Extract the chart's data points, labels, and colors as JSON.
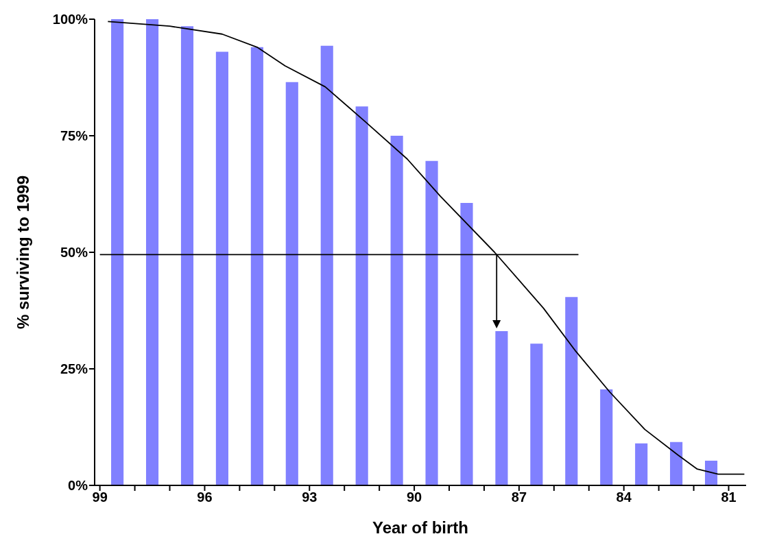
{
  "chart_data": {
    "type": "bar",
    "xlabel": "Year of birth",
    "ylabel": "% surviving to 1999",
    "xlim": [
      99.15,
      80.5
    ],
    "xticks": [
      {
        "value": 99,
        "label": "99"
      },
      {
        "value": 98,
        "label": null
      },
      {
        "value": 97,
        "label": null
      },
      {
        "value": 96,
        "label": "96"
      },
      {
        "value": 95,
        "label": null
      },
      {
        "value": 94,
        "label": null
      },
      {
        "value": 93,
        "label": "93"
      },
      {
        "value": 92,
        "label": null
      },
      {
        "value": 91,
        "label": null
      },
      {
        "value": 90,
        "label": "90"
      },
      {
        "value": 89,
        "label": null
      },
      {
        "value": 88,
        "label": null
      },
      {
        "value": 87,
        "label": "87"
      },
      {
        "value": 86,
        "label": null
      },
      {
        "value": 85,
        "label": null
      },
      {
        "value": 84,
        "label": "84"
      },
      {
        "value": 83,
        "label": null
      },
      {
        "value": 82,
        "label": null
      },
      {
        "value": 81,
        "label": "81"
      }
    ],
    "ylim": [
      0,
      100
    ],
    "yticks": [
      {
        "value": 0,
        "label": "0%"
      },
      {
        "value": 25,
        "label": "25%"
      },
      {
        "value": 50,
        "label": "50%"
      },
      {
        "value": 75,
        "label": "75%"
      },
      {
        "value": 100,
        "label": "100%"
      }
    ],
    "grid": false,
    "series": [
      {
        "color": "#8080ff",
        "x": [
          98.5,
          97.5,
          96.5,
          95.5,
          94.5,
          93.5,
          92.5,
          91.5,
          90.5,
          89.5,
          88.5,
          87.5,
          86.5,
          85.5,
          84.5,
          83.5,
          82.5,
          81.5
        ],
        "values": [
          100,
          100,
          98.5,
          93,
          94,
          86.5,
          94.3,
          81.3,
          75,
          69.6,
          60.6,
          33.1,
          30.4,
          40.4,
          20.6,
          9,
          9.3,
          5.3
        ]
      },
      {
        "type": "line",
        "color": "#000000",
        "marker": "none",
        "x": [
          98.77,
          97,
          95.5,
          94.5,
          93.7,
          92.55,
          91.4,
          90.2,
          89.25,
          87.7,
          86.3,
          85.4,
          84.4,
          83.4,
          82.45,
          81.9,
          81.3,
          80.55
        ],
        "values": [
          99.5,
          98.5,
          96.8,
          94,
          90,
          85.5,
          78,
          70,
          62,
          50,
          38,
          29,
          20,
          12,
          6.5,
          3.5,
          2.4,
          2.4
        ]
      },
      {
        "type": "line",
        "color": "#000000",
        "marker": "none",
        "x": [
          99,
          85.3
        ],
        "values": [
          49.5,
          49.5
        ]
      }
    ]
  }
}
